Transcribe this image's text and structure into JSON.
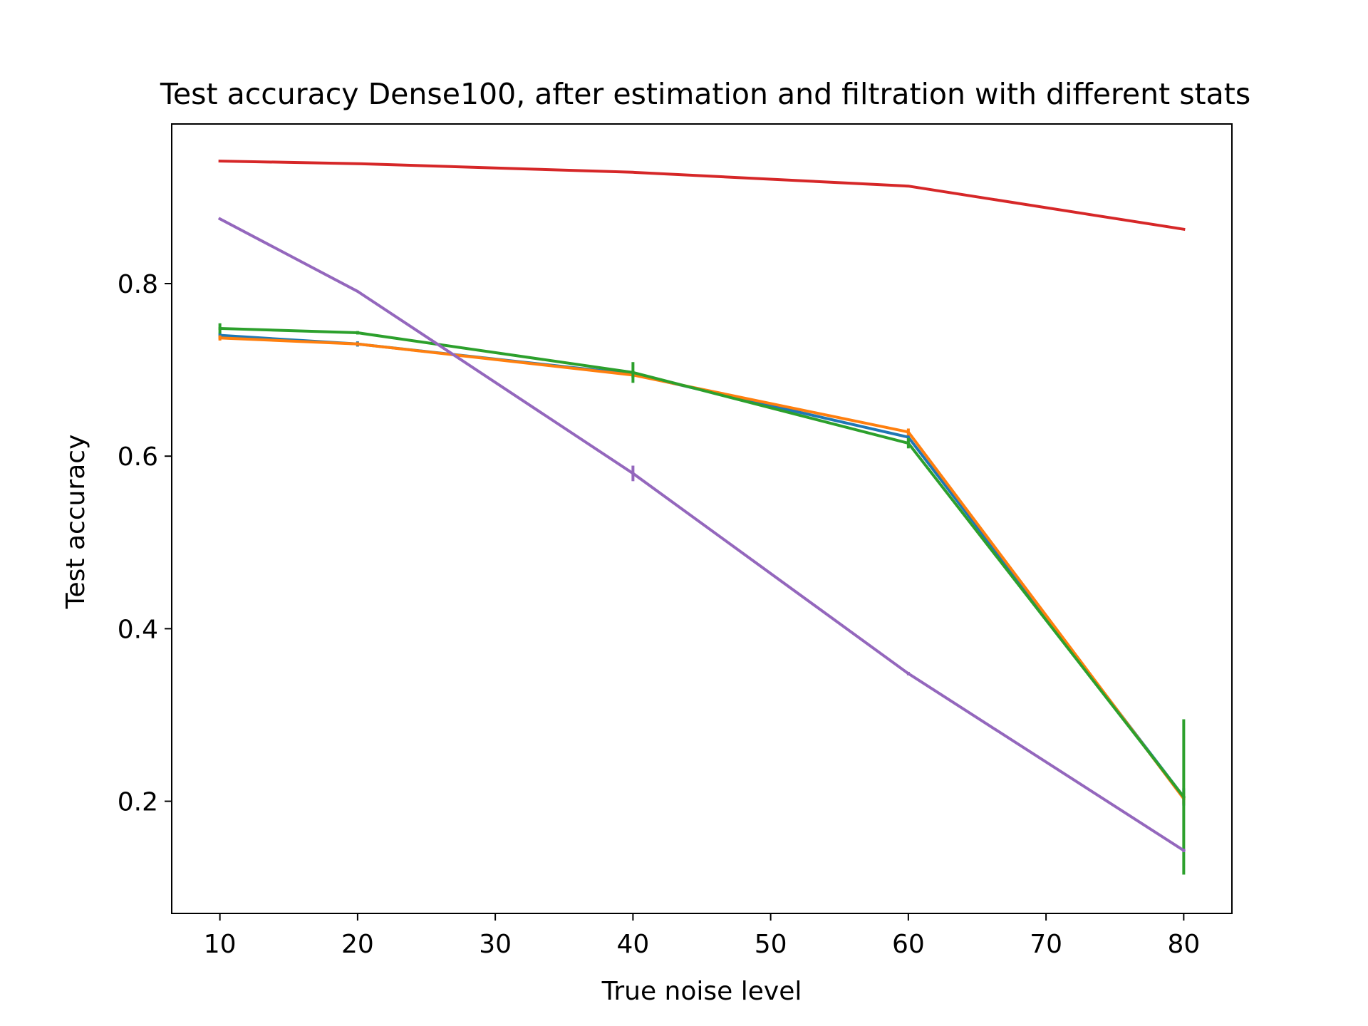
{
  "chart_data": {
    "type": "line",
    "title": "Test accuracy Dense100, after estimation and filtration with different stats",
    "xlabel": "True noise level",
    "ylabel": "Test accuracy",
    "xlim": [
      6.5,
      83.5
    ],
    "ylim": [
      0.07,
      0.985
    ],
    "xticks": [
      10,
      20,
      30,
      40,
      50,
      60,
      70,
      80
    ],
    "yticks": [
      0.2,
      0.4,
      0.6,
      0.8
    ],
    "xtick_labels": [
      "10",
      "20",
      "30",
      "40",
      "50",
      "60",
      "70",
      "80"
    ],
    "ytick_labels": [
      "0.2",
      "0.4",
      "0.6",
      "0.8"
    ],
    "grid": false,
    "legend": false,
    "x": [
      10,
      20,
      40,
      60,
      80
    ],
    "series": [
      {
        "color": "#1f77b4",
        "values": [
          0.74,
          0.73,
          0.695,
          0.622,
          0.205
        ],
        "errors": [
          0.003,
          0.003,
          0.004,
          0.005,
          0.01
        ]
      },
      {
        "color": "#ff7f0e",
        "values": [
          0.737,
          0.73,
          0.694,
          0.628,
          0.203
        ],
        "errors": [
          0.003,
          0.002,
          0.003,
          0.004,
          0.006
        ]
      },
      {
        "color": "#2ca02c",
        "values": [
          0.748,
          0.743,
          0.697,
          0.615,
          0.205
        ],
        "errors": [
          0.006,
          0.002,
          0.012,
          0.006,
          0.09
        ]
      },
      {
        "color": "#d62728",
        "values": [
          0.942,
          0.939,
          0.929,
          0.913,
          0.863
        ],
        "errors": [
          0,
          0,
          0,
          0,
          0
        ]
      },
      {
        "color": "#9467bd",
        "values": [
          0.875,
          0.791,
          0.58,
          0.348,
          0.143
        ],
        "errors": [
          0.001,
          0.001,
          0.009,
          0.002,
          0.002
        ]
      }
    ]
  }
}
